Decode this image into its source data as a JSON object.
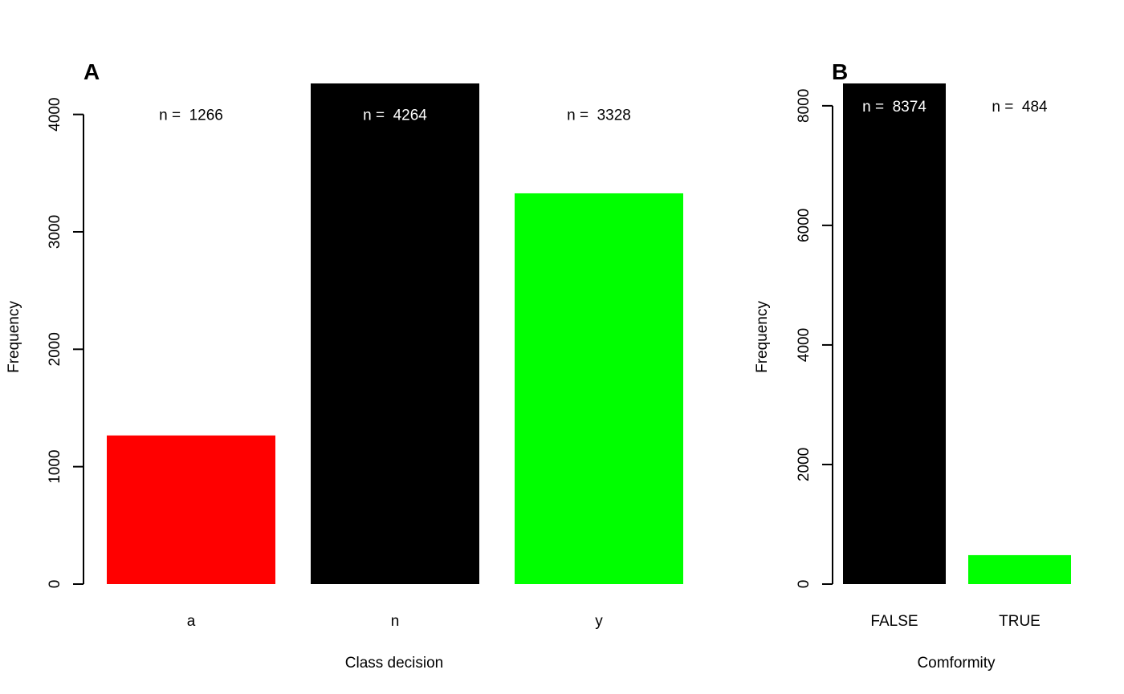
{
  "chart_data": [
    {
      "type": "bar",
      "panel_label": "A",
      "categories": [
        "a",
        "n",
        "y"
      ],
      "values": [
        1266,
        4264,
        3328
      ],
      "colors": [
        "#ff0000",
        "#000000",
        "#00ff00"
      ],
      "annotations": [
        "n =  1266",
        "n =  4264",
        "n =  3328"
      ],
      "annotation_colors": [
        "#000000",
        "#ffffff",
        "#000000"
      ],
      "annotation_y": 4000,
      "xlabel": "Class decision",
      "ylabel": "Frequency",
      "ylim": [
        0,
        4264
      ],
      "yticks": [
        0,
        1000,
        2000,
        3000,
        4000
      ],
      "grid": false
    },
    {
      "type": "bar",
      "panel_label": "B",
      "categories": [
        "FALSE",
        "TRUE"
      ],
      "values": [
        8374,
        484
      ],
      "colors": [
        "#000000",
        "#00ff00"
      ],
      "annotations": [
        "n =  8374",
        "n =  484"
      ],
      "annotation_colors": [
        "#ffffff",
        "#000000"
      ],
      "annotation_y": 8000,
      "xlabel": "Comformity",
      "ylabel": "Frequency",
      "ylim": [
        0,
        8374
      ],
      "yticks": [
        0,
        2000,
        4000,
        6000,
        8000
      ],
      "grid": false
    }
  ]
}
